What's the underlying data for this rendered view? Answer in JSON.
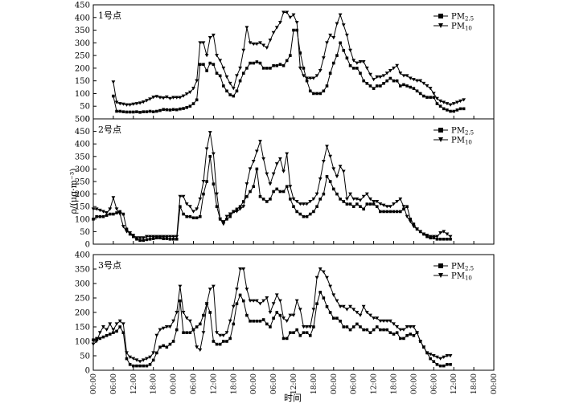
{
  "chart_data": {
    "type": "line",
    "ylabel": "ρ/(μg·m⁻³)",
    "xlabel": "时间",
    "x_ticks": [
      "00:00",
      "06:00",
      "12:00",
      "18:00",
      "00:00",
      "06:00",
      "12:00",
      "18:00",
      "00:00",
      "06:00",
      "12:00",
      "18:00",
      "00:00",
      "06:00",
      "12:00",
      "18:00",
      "00:00",
      "06:00",
      "12:00",
      "18:00",
      "00:00"
    ],
    "legend": [
      {
        "label": "PM",
        "sub": "2.5",
        "marker": "square"
      },
      {
        "label": "PM",
        "sub": "10",
        "marker": "triangle-down"
      }
    ],
    "panels": [
      {
        "title": "1号点",
        "ylim": [
          0,
          450
        ],
        "yticks": [
          0,
          50,
          100,
          150,
          200,
          250,
          300,
          350,
          400,
          450
        ],
        "series": [
          {
            "name": "PM2.5",
            "x_start": 6,
            "values": [
              90,
              30,
              30,
              28,
              27,
              27,
              27,
              28,
              26,
              28,
              28,
              30,
              28,
              30,
              33,
              37,
              36,
              35,
              37,
              36,
              39,
              41,
              45,
              50,
              60,
              75,
              215,
              215,
              190,
              220,
              215,
              180,
              170,
              130,
              110,
              95,
              90,
              110,
              150,
              180,
              200,
              220,
              220,
              225,
              220,
              200,
              200,
              200,
              210,
              210,
              215,
              210,
              230,
              250,
              350,
              350,
              260,
              200,
              150,
              110,
              100,
              100,
              100,
              110,
              130,
              180,
              220,
              250,
              300,
              270,
              240,
              210,
              200,
              200,
              180,
              150,
              140,
              130,
              120,
              130,
              130,
              140,
              150,
              160,
              150,
              150,
              130,
              135,
              130,
              125,
              120,
              110,
              100,
              90,
              85,
              85,
              85,
              60,
              50,
              40,
              35,
              30,
              30,
              35,
              40,
              40
            ]
          },
          {
            "name": "PM10",
            "x_start": 6,
            "values": [
              145,
              65,
              60,
              58,
              55,
              55,
              58,
              60,
              62,
              66,
              72,
              78,
              85,
              88,
              84,
              82,
              86,
              80,
              84,
              84,
              84,
              90,
              98,
              105,
              120,
              150,
              300,
              300,
              250,
              320,
              330,
              250,
              230,
              200,
              165,
              140,
              120,
              170,
              200,
              270,
              360,
              300,
              295,
              295,
              300,
              290,
              280,
              310,
              340,
              360,
              380,
              420,
              420,
              400,
              410,
              380,
              200,
              170,
              160,
              160,
              160,
              170,
              190,
              240,
              300,
              330,
              320,
              375,
              410,
              370,
              330,
              270,
              230,
              220,
              225,
              225,
              200,
              175,
              155,
              165,
              165,
              170,
              180,
              190,
              200,
              210,
              180,
              170,
              170,
              160,
              155,
              150,
              150,
              140,
              130,
              120,
              100,
              80,
              70,
              65,
              60,
              55,
              60,
              65,
              70,
              75
            ]
          }
        ]
      },
      {
        "title": "2号点",
        "ylim": [
          0,
          500
        ],
        "yticks": [
          0,
          50,
          100,
          150,
          200,
          250,
          300,
          350,
          400,
          450,
          500
        ],
        "series": [
          {
            "name": "PM2.5",
            "x_start": 0,
            "values": [
              100,
              110,
              110,
              110,
              115,
              120,
              120,
              125,
              130,
              120,
              60,
              40,
              30,
              20,
              15,
              15,
              18,
              20,
              22,
              25,
              25,
              22,
              22,
              20,
              20,
              20,
              150,
              120,
              110,
              110,
              105,
              105,
              110,
              200,
              250,
              350,
              240,
              150,
              100,
              90,
              100,
              110,
              130,
              140,
              150,
              170,
              190,
              210,
              230,
              300,
              190,
              180,
              170,
              180,
              210,
              220,
              210,
              210,
              230,
              180,
              150,
              130,
              120,
              110,
              110,
              120,
              130,
              150,
              180,
              200,
              270,
              250,
              220,
              200,
              180,
              170,
              160,
              160,
              150,
              160,
              150,
              140,
              160,
              160,
              160,
              150,
              130,
              130,
              130,
              130,
              130,
              130,
              130,
              140,
              150,
              100,
              80,
              60,
              50,
              40,
              30,
              25,
              25,
              20,
              20,
              20,
              20,
              20
            ]
          },
          {
            "name": "PM10",
            "x_start": 0,
            "values": [
              140,
              140,
              135,
              130,
              125,
              140,
              185,
              140,
              120,
              70,
              50,
              45,
              35,
              25,
              25,
              25,
              30,
              30,
              30,
              30,
              30,
              30,
              30,
              30,
              30,
              30,
              190,
              190,
              160,
              150,
              130,
              140,
              180,
              250,
              380,
              445,
              360,
              200,
              100,
              80,
              110,
              120,
              130,
              130,
              140,
              150,
              240,
              300,
              330,
              370,
              410,
              340,
              280,
              240,
              280,
              320,
              340,
              290,
              360,
              230,
              180,
              170,
              160,
              160,
              160,
              170,
              180,
              200,
              260,
              330,
              390,
              350,
              300,
              270,
              310,
              290,
              180,
              200,
              180,
              180,
              175,
              190,
              200,
              180,
              170,
              170,
              160,
              155,
              150,
              150,
              160,
              170,
              180,
              150,
              110,
              90,
              70,
              60,
              50,
              40,
              35,
              30,
              30,
              30,
              45,
              50,
              40,
              30
            ]
          }
        ]
      },
      {
        "title": "3号点",
        "ylim": [
          0,
          400
        ],
        "yticks": [
          0,
          50,
          100,
          150,
          200,
          250,
          300,
          350,
          400
        ],
        "series": [
          {
            "name": "PM2.5",
            "x_start": 0,
            "values": [
              105,
              110,
              110,
              115,
              120,
              125,
              130,
              135,
              150,
              130,
              40,
              20,
              15,
              15,
              15,
              15,
              15,
              20,
              35,
              60,
              80,
              85,
              80,
              90,
              100,
              140,
              240,
              130,
              130,
              130,
              140,
              150,
              160,
              190,
              230,
              200,
              100,
              90,
              90,
              100,
              100,
              110,
              160,
              230,
              260,
              240,
              190,
              170,
              170,
              170,
              170,
              175,
              160,
              150,
              180,
              200,
              190,
              110,
              110,
              130,
              130,
              140,
              120,
              130,
              130,
              120,
              150,
              230,
              270,
              250,
              220,
              200,
              180,
              180,
              170,
              150,
              150,
              140,
              150,
              160,
              150,
              140,
              140,
              130,
              140,
              150,
              140,
              140,
              140,
              130,
              125,
              130,
              110,
              110,
              120,
              125,
              120,
              130,
              100,
              80,
              60,
              40,
              30,
              20,
              15,
              15,
              20,
              20
            ]
          },
          {
            "name": "PM10",
            "x_start": 0,
            "values": [
              90,
              100,
              130,
              150,
              140,
              160,
              140,
              160,
              170,
              160,
              60,
              45,
              40,
              35,
              30,
              35,
              40,
              45,
              60,
              120,
              140,
              145,
              150,
              150,
              170,
              200,
              290,
              200,
              180,
              170,
              140,
              80,
              70,
              130,
              230,
              280,
              290,
              130,
              120,
              120,
              130,
              170,
              220,
              280,
              350,
              350,
              280,
              240,
              240,
              240,
              230,
              240,
              250,
              200,
              230,
              260,
              240,
              180,
              170,
              190,
              190,
              240,
              210,
              150,
              150,
              150,
              210,
              320,
              350,
              340,
              320,
              290,
              260,
              240,
              220,
              220,
              210,
              220,
              210,
              200,
              190,
              220,
              200,
              190,
              180,
              180,
              170,
              170,
              170,
              170,
              160,
              150,
              140,
              140,
              150,
              150,
              150,
              130,
              100,
              80,
              60,
              55,
              50,
              45,
              40,
              45,
              50,
              50
            ]
          }
        ]
      }
    ]
  }
}
